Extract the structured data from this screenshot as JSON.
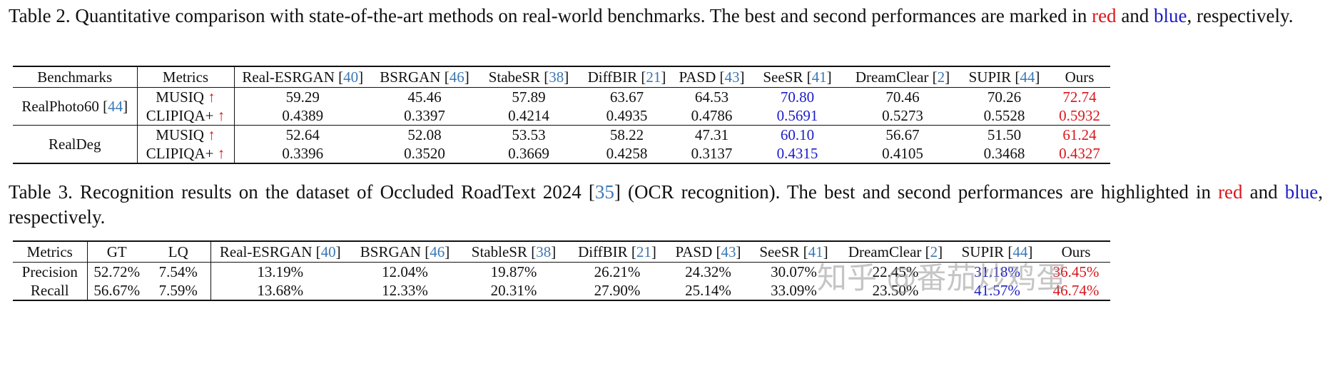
{
  "caption2": [
    "Table 2. Quantitative comparison with state-of-the-art methods on real-world benchmarks. The best and second performances are marked in ",
    {
      "text": "red",
      "color": "#d9161c"
    },
    " and ",
    {
      "text": "blue",
      "color": "#1c1cc8"
    },
    ", respectively."
  ],
  "table2": {
    "header": [
      "Benchmarks",
      "Metrics",
      [
        "Real-ESRGAN [",
        {
          "text": "40",
          "color": "#3a78b5"
        },
        "]"
      ],
      [
        "BSRGAN [",
        {
          "text": "46",
          "color": "#3a78b5"
        },
        "]"
      ],
      [
        "StabeSR [",
        {
          "text": "38",
          "color": "#3a78b5"
        },
        "]"
      ],
      [
        "DiffBIR [",
        {
          "text": "21",
          "color": "#3a78b5"
        },
        "]"
      ],
      [
        "PASD [",
        {
          "text": "43",
          "color": "#3a78b5"
        },
        "]"
      ],
      [
        "SeeSR [",
        {
          "text": "41",
          "color": "#3a78b5"
        },
        "]"
      ],
      [
        "DreamClear [",
        {
          "text": "2",
          "color": "#3a78b5"
        },
        "]"
      ],
      [
        "SUPIR [",
        {
          "text": "44",
          "color": "#3a78b5"
        },
        "]"
      ],
      "Ours"
    ],
    "groups": [
      {
        "label": [
          "RealPhoto60 [",
          {
            "text": "44",
            "color": "#3a78b5"
          },
          "]"
        ],
        "rows": [
          [
            [
              "MUSIQ ",
              {
                "text": "↑",
                "color": "#d9161c"
              }
            ],
            "59.29",
            "45.46",
            "57.89",
            "63.67",
            "64.53",
            {
              "text": "70.80",
              "color": "#1c1cc8"
            },
            "70.46",
            "70.26",
            {
              "text": "72.74",
              "color": "#d9161c"
            }
          ],
          [
            [
              "CLIPIQA+ ",
              {
                "text": "↑",
                "color": "#d9161c"
              }
            ],
            "0.4389",
            "0.3397",
            "0.4214",
            "0.4935",
            "0.4786",
            {
              "text": "0.5691",
              "color": "#1c1cc8"
            },
            "0.5273",
            "0.5528",
            {
              "text": "0.5932",
              "color": "#d9161c"
            }
          ]
        ]
      },
      {
        "label": "RealDeg",
        "rows": [
          [
            [
              "MUSIQ ",
              {
                "text": "↑",
                "color": "#d9161c"
              }
            ],
            "52.64",
            "52.08",
            "53.53",
            "58.22",
            "47.31",
            {
              "text": "60.10",
              "color": "#1c1cc8"
            },
            "56.67",
            "51.50",
            {
              "text": "61.24",
              "color": "#d9161c"
            }
          ],
          [
            [
              "CLIPIQA+ ",
              {
                "text": "↑",
                "color": "#d9161c"
              }
            ],
            "0.3396",
            "0.3520",
            "0.3669",
            "0.4258",
            "0.3137",
            {
              "text": "0.4315",
              "color": "#1c1cc8"
            },
            "0.4105",
            "0.3468",
            {
              "text": "0.4327",
              "color": "#d9161c"
            }
          ]
        ]
      }
    ]
  },
  "caption3": [
    "Table 3. Recognition results on the dataset of Occluded RoadText 2024 [",
    {
      "text": "35",
      "color": "#3a78b5"
    },
    "] (OCR recognition). The best and second performances are highlighted in ",
    {
      "text": "red",
      "color": "#d9161c"
    },
    " and ",
    {
      "text": "blue",
      "color": "#1c1cc8"
    },
    ", respectively."
  ],
  "table3": {
    "header": [
      "Metrics",
      "GT",
      "LQ",
      [
        "Real-ESRGAN [",
        {
          "text": "40",
          "color": "#3a78b5"
        },
        "]"
      ],
      [
        "BSRGAN [",
        {
          "text": "46",
          "color": "#3a78b5"
        },
        "]"
      ],
      [
        "StableSR [",
        {
          "text": "38",
          "color": "#3a78b5"
        },
        "]"
      ],
      [
        "DiffBIR [",
        {
          "text": "21",
          "color": "#3a78b5"
        },
        "]"
      ],
      [
        "PASD [",
        {
          "text": "43",
          "color": "#3a78b5"
        },
        "]"
      ],
      [
        "SeeSR [",
        {
          "text": "41",
          "color": "#3a78b5"
        },
        "]"
      ],
      [
        "DreamClear [",
        {
          "text": "2",
          "color": "#3a78b5"
        },
        "]"
      ],
      [
        "SUPIR [",
        {
          "text": "44",
          "color": "#3a78b5"
        },
        "]"
      ],
      "Ours"
    ],
    "rows": [
      [
        "Precision",
        "52.72%",
        "7.54%",
        "13.19%",
        "12.04%",
        "19.87%",
        "26.21%",
        "24.32%",
        "30.07%",
        "22.45%",
        {
          "text": "31.18%",
          "color": "#1c1cc8"
        },
        {
          "text": "36.45%",
          "color": "#d9161c"
        }
      ],
      [
        "Recall",
        "56.67%",
        "7.59%",
        "13.68%",
        "12.33%",
        "20.31%",
        "27.90%",
        "25.14%",
        "33.09%",
        "23.50%",
        {
          "text": "41.57%",
          "color": "#1c1cc8"
        },
        {
          "text": "46.74%",
          "color": "#d9161c"
        }
      ]
    ]
  },
  "watermark": "知乎 @番茄炒鸡蛋"
}
